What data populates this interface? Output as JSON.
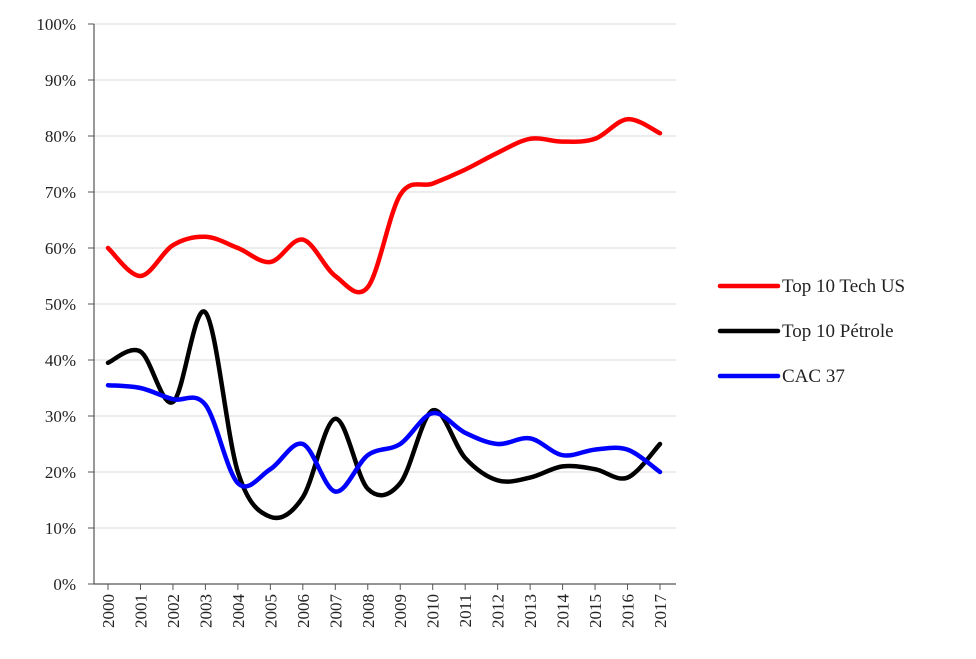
{
  "chart_data": {
    "type": "line",
    "title": "",
    "xlabel": "",
    "ylabel": "",
    "x": [
      "2000",
      "2001",
      "2002",
      "2003",
      "2004",
      "2005",
      "2006",
      "2007",
      "2008",
      "2009",
      "2010",
      "2011",
      "2012",
      "2013",
      "2014",
      "2015",
      "2016",
      "2017"
    ],
    "ylim": [
      0,
      100
    ],
    "y_ticks": [
      "0%",
      "10%",
      "20%",
      "30%",
      "40%",
      "50%",
      "60%",
      "70%",
      "80%",
      "90%",
      "100%"
    ],
    "grid": "horizontal",
    "legend_position": "right",
    "series": [
      {
        "name": "Top 10 Tech US",
        "color": "#ff0000",
        "values": [
          60,
          55,
          60.5,
          62,
          60,
          57.5,
          61.5,
          55,
          53,
          69.5,
          71.5,
          74,
          77,
          79.5,
          79,
          79.5,
          83,
          80.5
        ]
      },
      {
        "name": "Top 10 Pétrole",
        "color": "#000000",
        "values": [
          39.5,
          41.5,
          32.5,
          48.5,
          20,
          12,
          15.5,
          29.5,
          17,
          18,
          31,
          22.5,
          18.5,
          19,
          21,
          20.5,
          19,
          25
        ]
      },
      {
        "name": "CAC 37",
        "color": "#0000ff",
        "values": [
          35.5,
          35,
          33,
          32,
          18,
          20.5,
          25,
          16.5,
          23,
          25,
          30.5,
          27,
          25,
          26,
          23,
          24,
          24,
          20
        ]
      }
    ]
  }
}
